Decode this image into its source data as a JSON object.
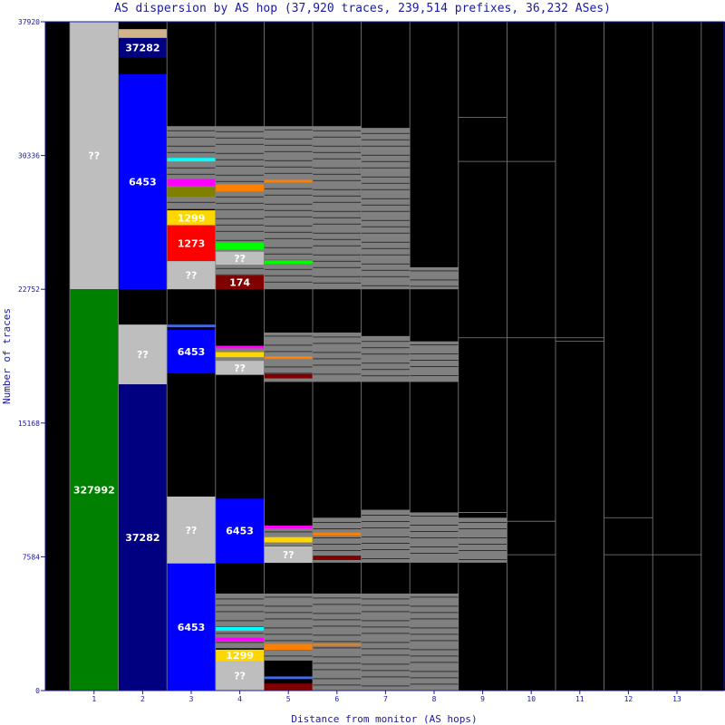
{
  "chart_data": {
    "type": "stacked-bar",
    "title": "AS dispersion by AS hop (37,920 traces, 239,514 prefixes, 36,232 ASes)",
    "xlabel": "Distance from monitor (AS hops)",
    "ylabel": "Number of traces",
    "ylim": [
      0,
      37920
    ],
    "yticks": [
      "0",
      "7584",
      "15168",
      "22752",
      "30336",
      "37920"
    ],
    "categories": [
      "1",
      "2",
      "3",
      "4",
      "5",
      "6",
      "7",
      "8",
      "9",
      "10",
      "11",
      "12",
      "13"
    ],
    "grid": false,
    "colors": {
      "background": "#000000",
      "frame": "#1a1aa0",
      "unknown": "#bebebe",
      "fragmented": "#808080",
      "as327992": "#008000",
      "as37282": "#000080",
      "as6453": "#0000ff",
      "as1299": "#ffd700",
      "as1273": "#ff0000",
      "as174": "#800000"
    },
    "segments": [
      {
        "hop": 1,
        "from": 22752,
        "to": 37920,
        "label": "??",
        "color": "#bebebe"
      },
      {
        "hop": 1,
        "from": 0,
        "to": 22752,
        "label": "327992",
        "color": "#008000"
      },
      {
        "hop": 2,
        "from": 35900,
        "to": 37000,
        "label": "37282",
        "color": "#000080"
      },
      {
        "hop": 2,
        "from": 22752,
        "to": 34950,
        "label": "6453",
        "color": "#0000ff"
      },
      {
        "hop": 2,
        "from": 17360,
        "to": 20750,
        "label": "??",
        "color": "#bebebe"
      },
      {
        "hop": 2,
        "from": 0,
        "to": 17360,
        "label": "37282",
        "color": "#000080"
      },
      {
        "hop": 3,
        "from": 26380,
        "to": 27230,
        "label": "1299",
        "color": "#ffd700"
      },
      {
        "hop": 3,
        "from": 24350,
        "to": 26380,
        "label": "1273",
        "color": "#ff0000"
      },
      {
        "hop": 3,
        "from": 22752,
        "to": 24350,
        "label": "??",
        "color": "#bebebe"
      },
      {
        "hop": 3,
        "from": 17980,
        "to": 20450,
        "label": "6453",
        "color": "#0000ff"
      },
      {
        "hop": 3,
        "from": 7200,
        "to": 11000,
        "label": "??",
        "color": "#bebebe"
      },
      {
        "hop": 3,
        "from": 0,
        "to": 7200,
        "label": "6453",
        "color": "#0000ff"
      },
      {
        "hop": 4,
        "from": 24150,
        "to": 24880,
        "label": "??",
        "color": "#bebebe"
      },
      {
        "hop": 4,
        "from": 22752,
        "to": 23530,
        "label": "174",
        "color": "#800000"
      },
      {
        "hop": 4,
        "from": 17900,
        "to": 18700,
        "label": "??",
        "color": "#bebebe"
      },
      {
        "hop": 4,
        "from": 7240,
        "to": 10880,
        "label": "6453",
        "color": "#0000ff"
      },
      {
        "hop": 4,
        "from": 1670,
        "to": 2320,
        "label": "1299",
        "color": "#ffd700"
      },
      {
        "hop": 4,
        "from": 0,
        "to": 1670,
        "label": "??",
        "color": "#bebebe"
      },
      {
        "hop": 5,
        "from": 7240,
        "to": 8180,
        "label": "??",
        "color": "#bebebe"
      }
    ]
  }
}
